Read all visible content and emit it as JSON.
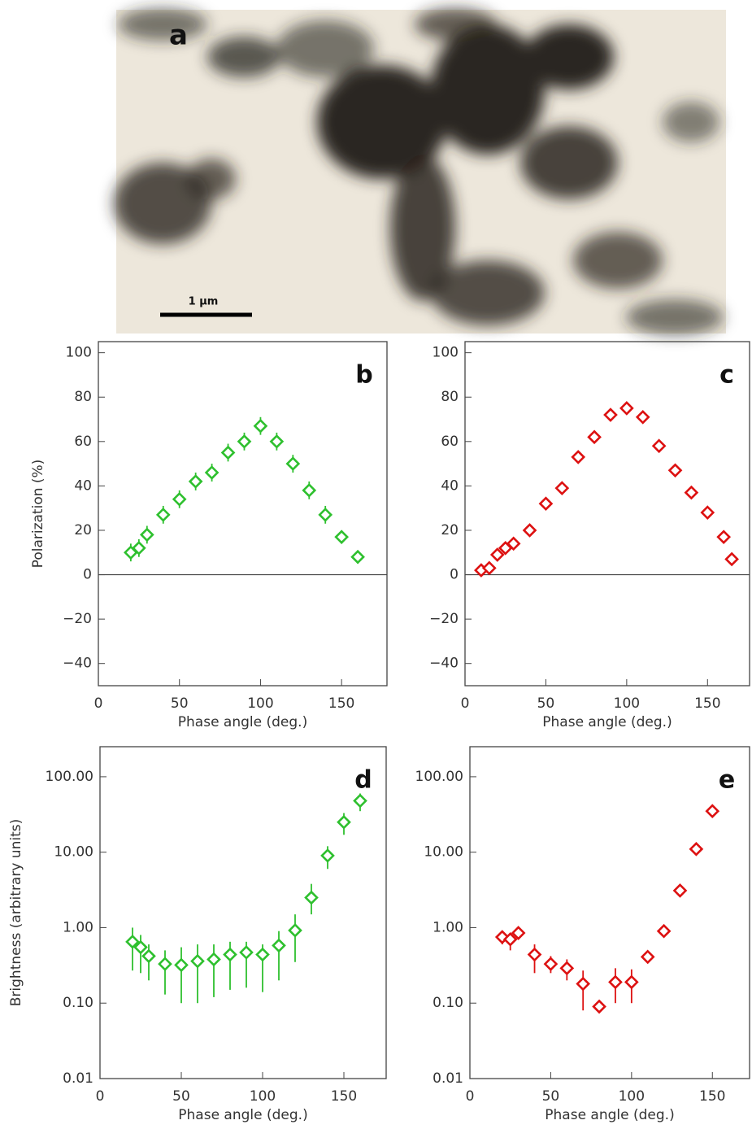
{
  "image_panel": {
    "label": "a",
    "scale_bar": "1 μm"
  },
  "chart_data": [
    {
      "type": "scatter",
      "label": "b",
      "ylabel": "Polarization (%)",
      "xlabel": "Phase angle (deg.)",
      "color": "#2ec02e",
      "x": [
        20,
        25,
        30,
        40,
        50,
        60,
        70,
        80,
        90,
        100,
        110,
        120,
        130,
        140,
        150,
        160
      ],
      "values": [
        10,
        12,
        18,
        27,
        34,
        42,
        46,
        55,
        60,
        67,
        60,
        50,
        38,
        27,
        17,
        8
      ],
      "errors": [
        4,
        4,
        4,
        4,
        4,
        4,
        4,
        4,
        4,
        4,
        4,
        4,
        4,
        4,
        3,
        3
      ],
      "xlim": [
        0,
        178
      ],
      "ylim": [
        -50,
        105
      ],
      "xticks": [
        0,
        50,
        100,
        150
      ],
      "yticks": [
        {
          "value": -40,
          "label": "−40"
        },
        {
          "value": -20,
          "label": "−20"
        },
        0,
        20,
        40,
        60,
        80,
        100
      ],
      "zero_line": true
    },
    {
      "type": "scatter",
      "label": "c",
      "xlabel": "Phase angle (deg.)",
      "color": "#dd1111",
      "x": [
        10,
        15,
        20,
        25,
        30,
        40,
        50,
        60,
        70,
        80,
        90,
        100,
        110,
        120,
        130,
        140,
        150,
        160,
        165
      ],
      "values": [
        2,
        3,
        9,
        12,
        14,
        20,
        32,
        39,
        53,
        62,
        72,
        75,
        71,
        58,
        47,
        37,
        28,
        17,
        7
      ],
      "errors": [
        1,
        1,
        1,
        1,
        1,
        1,
        1,
        1,
        1,
        1,
        1,
        1,
        1,
        1,
        1,
        1,
        1,
        1,
        1
      ],
      "xlim": [
        0,
        176
      ],
      "ylim": [
        -50,
        105
      ],
      "xticks": [
        0,
        50,
        100,
        150
      ],
      "yticks": [
        {
          "value": -40,
          "label": "−40"
        },
        {
          "value": -20,
          "label": "−20"
        },
        0,
        20,
        40,
        60,
        80,
        100
      ],
      "zero_line": true
    },
    {
      "type": "scatter",
      "label": "d",
      "ylabel": "Brightness (arbitrary units)",
      "xlabel": "Phase angle (deg.)",
      "color": "#2ec02e",
      "log_y": true,
      "x": [
        20,
        25,
        30,
        40,
        50,
        60,
        70,
        80,
        90,
        100,
        110,
        120,
        130,
        140,
        150,
        160
      ],
      "values": [
        0.65,
        0.55,
        0.42,
        0.33,
        0.32,
        0.36,
        0.38,
        0.44,
        0.47,
        0.44,
        0.58,
        0.92,
        2.5,
        9,
        25,
        48
      ],
      "lower": [
        0.27,
        0.25,
        0.2,
        0.13,
        0.1,
        0.1,
        0.12,
        0.15,
        0.16,
        0.14,
        0.2,
        0.35,
        1.5,
        6,
        17,
        35
      ],
      "upper": [
        1.0,
        0.8,
        0.6,
        0.5,
        0.55,
        0.6,
        0.6,
        0.65,
        0.65,
        0.6,
        0.9,
        1.5,
        3.8,
        12,
        33,
        60
      ],
      "xlim": [
        0,
        176
      ],
      "ylim": [
        0.01,
        250
      ],
      "xticks": [
        0,
        50,
        100,
        150
      ],
      "yticks": [
        {
          "value": 0.01,
          "label": "0.01"
        },
        {
          "value": 0.1,
          "label": "0.10"
        },
        {
          "value": 1,
          "label": "1.00"
        },
        {
          "value": 10,
          "label": "10.00"
        },
        {
          "value": 100,
          "label": "100.00"
        }
      ]
    },
    {
      "type": "scatter",
      "label": "e",
      "xlabel": "Phase angle (deg.)",
      "color": "#dd1111",
      "log_y": true,
      "x": [
        20,
        25,
        30,
        40,
        50,
        60,
        70,
        80,
        90,
        100,
        110,
        120,
        130,
        140,
        150
      ],
      "values": [
        0.75,
        0.7,
        0.85,
        0.44,
        0.33,
        0.29,
        0.18,
        0.09,
        0.19,
        0.19,
        0.41,
        0.9,
        3.1,
        11,
        35
      ],
      "lower": [
        0.6,
        0.5,
        0.7,
        0.25,
        0.25,
        0.2,
        0.08,
        0.085,
        0.1,
        0.1,
        0.35,
        0.8,
        2.8,
        10,
        32
      ],
      "upper": [
        0.85,
        0.85,
        1.0,
        0.6,
        0.42,
        0.38,
        0.27,
        0.095,
        0.29,
        0.28,
        0.48,
        1.0,
        3.4,
        12,
        38
      ],
      "xlim": [
        0,
        173
      ],
      "ylim": [
        0.01,
        250
      ],
      "xticks": [
        0,
        50,
        100,
        150
      ],
      "yticks": [
        {
          "value": 0.01,
          "label": "0.01"
        },
        {
          "value": 0.1,
          "label": "0.10"
        },
        {
          "value": 1,
          "label": "1.00"
        },
        {
          "value": 10,
          "label": "10.00"
        },
        {
          "value": 100,
          "label": "100.00"
        }
      ]
    }
  ]
}
